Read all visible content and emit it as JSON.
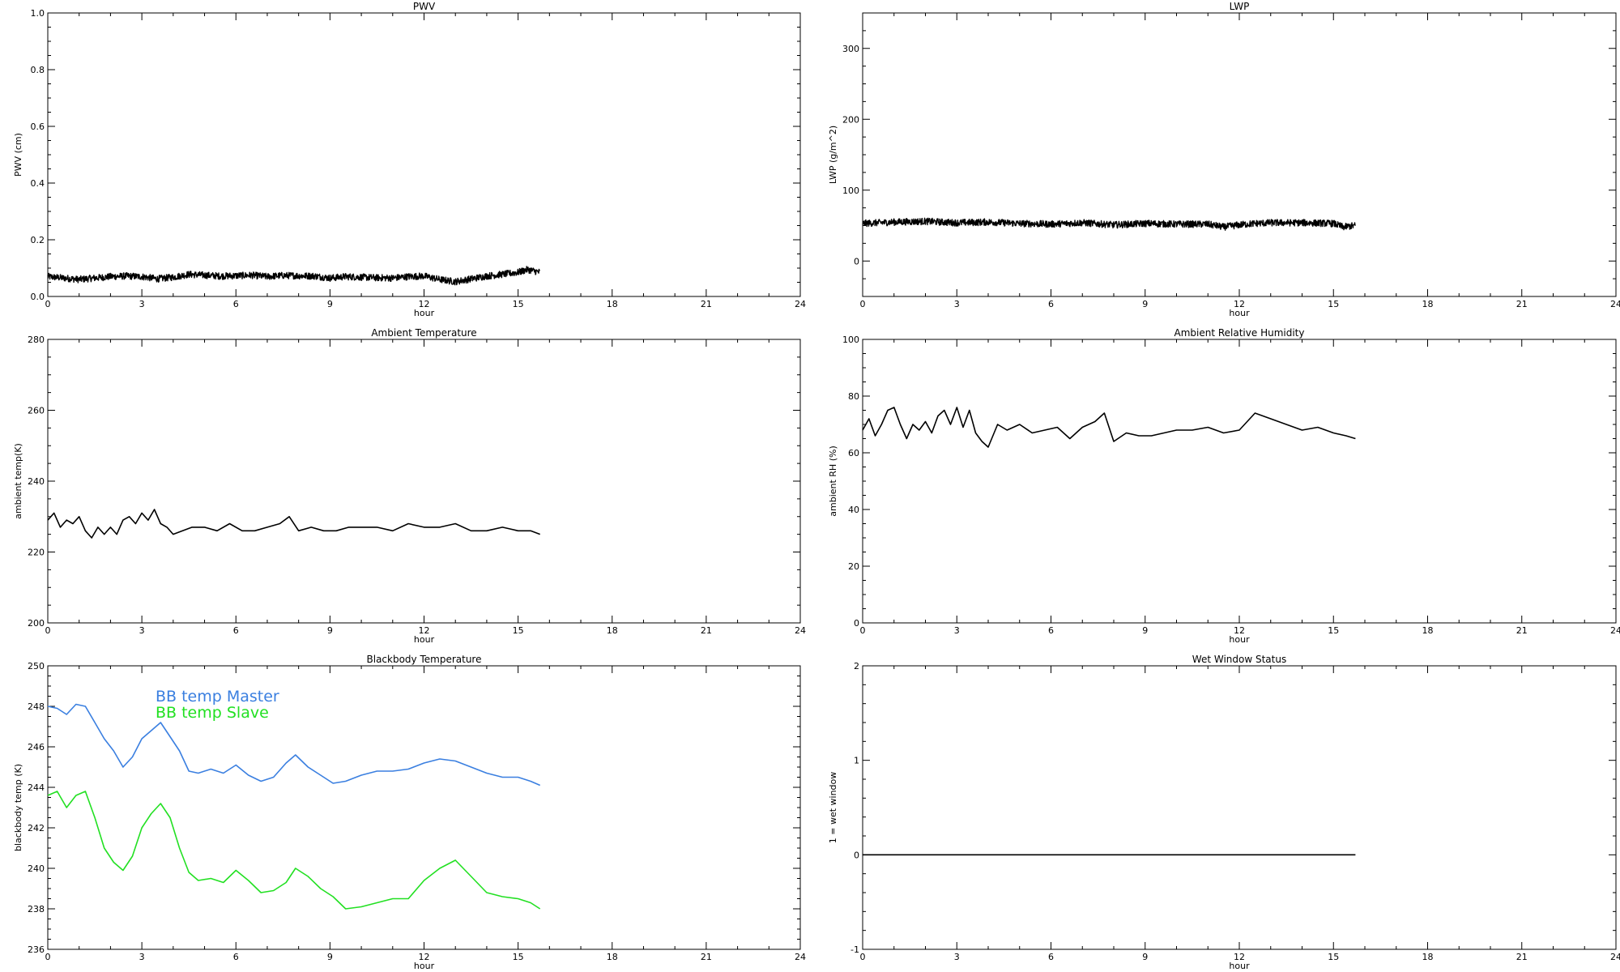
{
  "chart_data": [
    {
      "type": "line",
      "title": "PWV",
      "xlabel": "hour",
      "ylabel": "PWV (cm)",
      "xlim": [
        0,
        24
      ],
      "ylim": [
        0,
        1.0
      ],
      "xticks": [
        0,
        3,
        6,
        9,
        12,
        15,
        18,
        21,
        24
      ],
      "yticks": [
        0.0,
        0.2,
        0.4,
        0.6,
        0.8,
        1.0
      ],
      "ytick_labels": [
        "0.0",
        "0.2",
        "0.4",
        "0.6",
        "0.8",
        "1.0"
      ],
      "grid": false,
      "series": [
        {
          "color": "#000000",
          "style": "noisy",
          "x": [
            0,
            0.5,
            1,
            1.5,
            2,
            2.5,
            3,
            3.5,
            4,
            4.5,
            5,
            5.5,
            6,
            6.5,
            7,
            7.5,
            8,
            8.5,
            9,
            9.5,
            10,
            10.5,
            11,
            11.5,
            12,
            12.5,
            13,
            13.5,
            14,
            14.5,
            15,
            15.3,
            15.7
          ],
          "y": [
            0.07,
            0.065,
            0.06,
            0.065,
            0.07,
            0.072,
            0.07,
            0.062,
            0.068,
            0.078,
            0.075,
            0.072,
            0.073,
            0.075,
            0.07,
            0.074,
            0.073,
            0.072,
            0.065,
            0.07,
            0.068,
            0.066,
            0.065,
            0.07,
            0.072,
            0.06,
            0.052,
            0.062,
            0.072,
            0.078,
            0.085,
            0.095,
            0.085
          ]
        }
      ]
    },
    {
      "type": "line",
      "title": "LWP",
      "xlabel": "hour",
      "ylabel": "LWP (g/m^2)",
      "xlim": [
        0,
        24
      ],
      "ylim": [
        -50,
        350
      ],
      "xticks": [
        0,
        3,
        6,
        9,
        12,
        15,
        18,
        21,
        24
      ],
      "yticks": [
        0,
        100,
        200,
        300
      ],
      "ytick_labels": [
        "0",
        "100",
        "200",
        "300"
      ],
      "grid": false,
      "series": [
        {
          "color": "#000000",
          "style": "noisy",
          "x": [
            0,
            1,
            2,
            3,
            4,
            5,
            6,
            7,
            8,
            9,
            10,
            11,
            11.5,
            12,
            12.5,
            13,
            14,
            15,
            15.3,
            15.7
          ],
          "y": [
            53,
            55,
            56,
            54,
            55,
            53,
            52,
            54,
            51,
            53,
            52,
            52,
            48,
            51,
            53,
            54,
            54,
            53,
            48,
            50
          ]
        }
      ]
    },
    {
      "type": "line",
      "title": "Ambient Temperature",
      "xlabel": "hour",
      "ylabel": "ambient temp(K)",
      "xlim": [
        0,
        24
      ],
      "ylim": [
        200,
        280
      ],
      "xticks": [
        0,
        3,
        6,
        9,
        12,
        15,
        18,
        21,
        24
      ],
      "yticks": [
        200,
        220,
        240,
        260,
        280
      ],
      "ytick_labels": [
        "200",
        "220",
        "240",
        "260",
        "280"
      ],
      "grid": false,
      "series": [
        {
          "color": "#000000",
          "style": "line",
          "x": [
            0,
            0.2,
            0.4,
            0.6,
            0.8,
            1.0,
            1.2,
            1.4,
            1.6,
            1.8,
            2.0,
            2.2,
            2.4,
            2.6,
            2.8,
            3.0,
            3.2,
            3.4,
            3.6,
            3.8,
            4.0,
            4.3,
            4.6,
            5.0,
            5.4,
            5.8,
            6.2,
            6.6,
            7.0,
            7.4,
            7.7,
            8.0,
            8.4,
            8.8,
            9.2,
            9.6,
            10.0,
            10.5,
            11.0,
            11.5,
            12.0,
            12.5,
            13.0,
            13.5,
            14.0,
            14.5,
            15.0,
            15.4,
            15.7
          ],
          "y": [
            229,
            231,
            227,
            229,
            228,
            230,
            226,
            224,
            227,
            225,
            227,
            225,
            229,
            230,
            228,
            231,
            229,
            232,
            228,
            227,
            225,
            226,
            227,
            227,
            226,
            228,
            226,
            226,
            227,
            228,
            230,
            226,
            227,
            226,
            226,
            227,
            227,
            227,
            226,
            228,
            227,
            227,
            228,
            226,
            226,
            227,
            226,
            226,
            225
          ]
        }
      ]
    },
    {
      "type": "line",
      "title": "Ambient Relative Humidity",
      "xlabel": "hour",
      "ylabel": "ambient RH (%)",
      "xlim": [
        0,
        24
      ],
      "ylim": [
        0,
        100
      ],
      "xticks": [
        0,
        3,
        6,
        9,
        12,
        15,
        18,
        21,
        24
      ],
      "yticks": [
        0,
        20,
        40,
        60,
        80,
        100
      ],
      "ytick_labels": [
        "0",
        "20",
        "40",
        "60",
        "80",
        "100"
      ],
      "grid": false,
      "series": [
        {
          "color": "#000000",
          "style": "line",
          "x": [
            0,
            0.2,
            0.4,
            0.6,
            0.8,
            1.0,
            1.2,
            1.4,
            1.6,
            1.8,
            2.0,
            2.2,
            2.4,
            2.6,
            2.8,
            3.0,
            3.2,
            3.4,
            3.6,
            3.8,
            4.0,
            4.3,
            4.6,
            5.0,
            5.4,
            5.8,
            6.2,
            6.6,
            7.0,
            7.4,
            7.7,
            8.0,
            8.4,
            8.8,
            9.2,
            9.6,
            10.0,
            10.5,
            11.0,
            11.5,
            12.0,
            12.5,
            13.0,
            13.5,
            14.0,
            14.5,
            15.0,
            15.4,
            15.7
          ],
          "y": [
            68,
            72,
            66,
            70,
            75,
            76,
            70,
            65,
            70,
            68,
            71,
            67,
            73,
            75,
            70,
            76,
            69,
            75,
            67,
            64,
            62,
            70,
            68,
            70,
            67,
            68,
            69,
            65,
            69,
            71,
            74,
            64,
            67,
            66,
            66,
            67,
            68,
            68,
            69,
            67,
            68,
            74,
            72,
            70,
            68,
            69,
            67,
            66,
            65
          ]
        }
      ]
    },
    {
      "type": "line",
      "title": "Blackbody Temperature",
      "xlabel": "hour",
      "ylabel": "blackbody temp (K)",
      "xlim": [
        0,
        24
      ],
      "ylim": [
        236,
        250
      ],
      "xticks": [
        0,
        3,
        6,
        9,
        12,
        15,
        18,
        21,
        24
      ],
      "yticks": [
        236,
        238,
        240,
        242,
        244,
        246,
        248,
        250
      ],
      "ytick_labels": [
        "236",
        "238",
        "240",
        "242",
        "244",
        "246",
        "248",
        "250"
      ],
      "grid": false,
      "legend": [
        "BB temp Master",
        "BB temp Slave"
      ],
      "series": [
        {
          "name": "BB temp Master",
          "color": "#3a7fe0",
          "style": "line",
          "x": [
            0,
            0.3,
            0.6,
            0.9,
            1.2,
            1.5,
            1.8,
            2.1,
            2.4,
            2.7,
            3.0,
            3.3,
            3.6,
            3.9,
            4.2,
            4.5,
            4.8,
            5.2,
            5.6,
            6.0,
            6.4,
            6.8,
            7.2,
            7.6,
            7.9,
            8.3,
            8.7,
            9.1,
            9.5,
            10.0,
            10.5,
            11.0,
            11.5,
            12.0,
            12.5,
            13.0,
            13.5,
            14.0,
            14.5,
            15.0,
            15.4,
            15.7
          ],
          "y": [
            248.0,
            247.9,
            247.6,
            248.1,
            248.0,
            247.2,
            246.4,
            245.8,
            245.0,
            245.5,
            246.4,
            246.8,
            247.2,
            246.5,
            245.8,
            244.8,
            244.7,
            244.9,
            244.7,
            245.1,
            244.6,
            244.3,
            244.5,
            245.2,
            245.6,
            245.0,
            244.6,
            244.2,
            244.3,
            244.6,
            244.8,
            244.8,
            244.9,
            245.2,
            245.4,
            245.3,
            245.0,
            244.7,
            244.5,
            244.5,
            244.3,
            244.1
          ]
        },
        {
          "name": "BB temp Slave",
          "color": "#22e022",
          "style": "line",
          "x": [
            0,
            0.3,
            0.6,
            0.9,
            1.2,
            1.5,
            1.8,
            2.1,
            2.4,
            2.7,
            3.0,
            3.3,
            3.6,
            3.9,
            4.2,
            4.5,
            4.8,
            5.2,
            5.6,
            6.0,
            6.4,
            6.8,
            7.2,
            7.6,
            7.9,
            8.3,
            8.7,
            9.1,
            9.5,
            10.0,
            10.5,
            11.0,
            11.5,
            12.0,
            12.5,
            13.0,
            13.5,
            14.0,
            14.5,
            15.0,
            15.4,
            15.7
          ],
          "y": [
            243.6,
            243.8,
            243.0,
            243.6,
            243.8,
            242.5,
            241.0,
            240.3,
            239.9,
            240.6,
            242.0,
            242.7,
            243.2,
            242.5,
            241.0,
            239.8,
            239.4,
            239.5,
            239.3,
            239.9,
            239.4,
            238.8,
            238.9,
            239.3,
            240.0,
            239.6,
            239.0,
            238.6,
            238.0,
            238.1,
            238.3,
            238.5,
            238.5,
            239.4,
            240.0,
            240.4,
            239.6,
            238.8,
            238.6,
            238.5,
            238.3,
            238.0
          ]
        }
      ]
    },
    {
      "type": "line",
      "title": "Wet Window Status",
      "xlabel": "hour",
      "ylabel": "1 = wet window",
      "xlim": [
        0,
        24
      ],
      "ylim": [
        -1,
        2
      ],
      "xticks": [
        0,
        3,
        6,
        9,
        12,
        15,
        18,
        21,
        24
      ],
      "yticks": [
        -1,
        0,
        1,
        2
      ],
      "ytick_labels": [
        "-1",
        "0",
        "1",
        "2"
      ],
      "grid": false,
      "series": [
        {
          "color": "#000000",
          "style": "line",
          "x": [
            0,
            15.7
          ],
          "y": [
            0,
            0
          ]
        }
      ]
    }
  ]
}
